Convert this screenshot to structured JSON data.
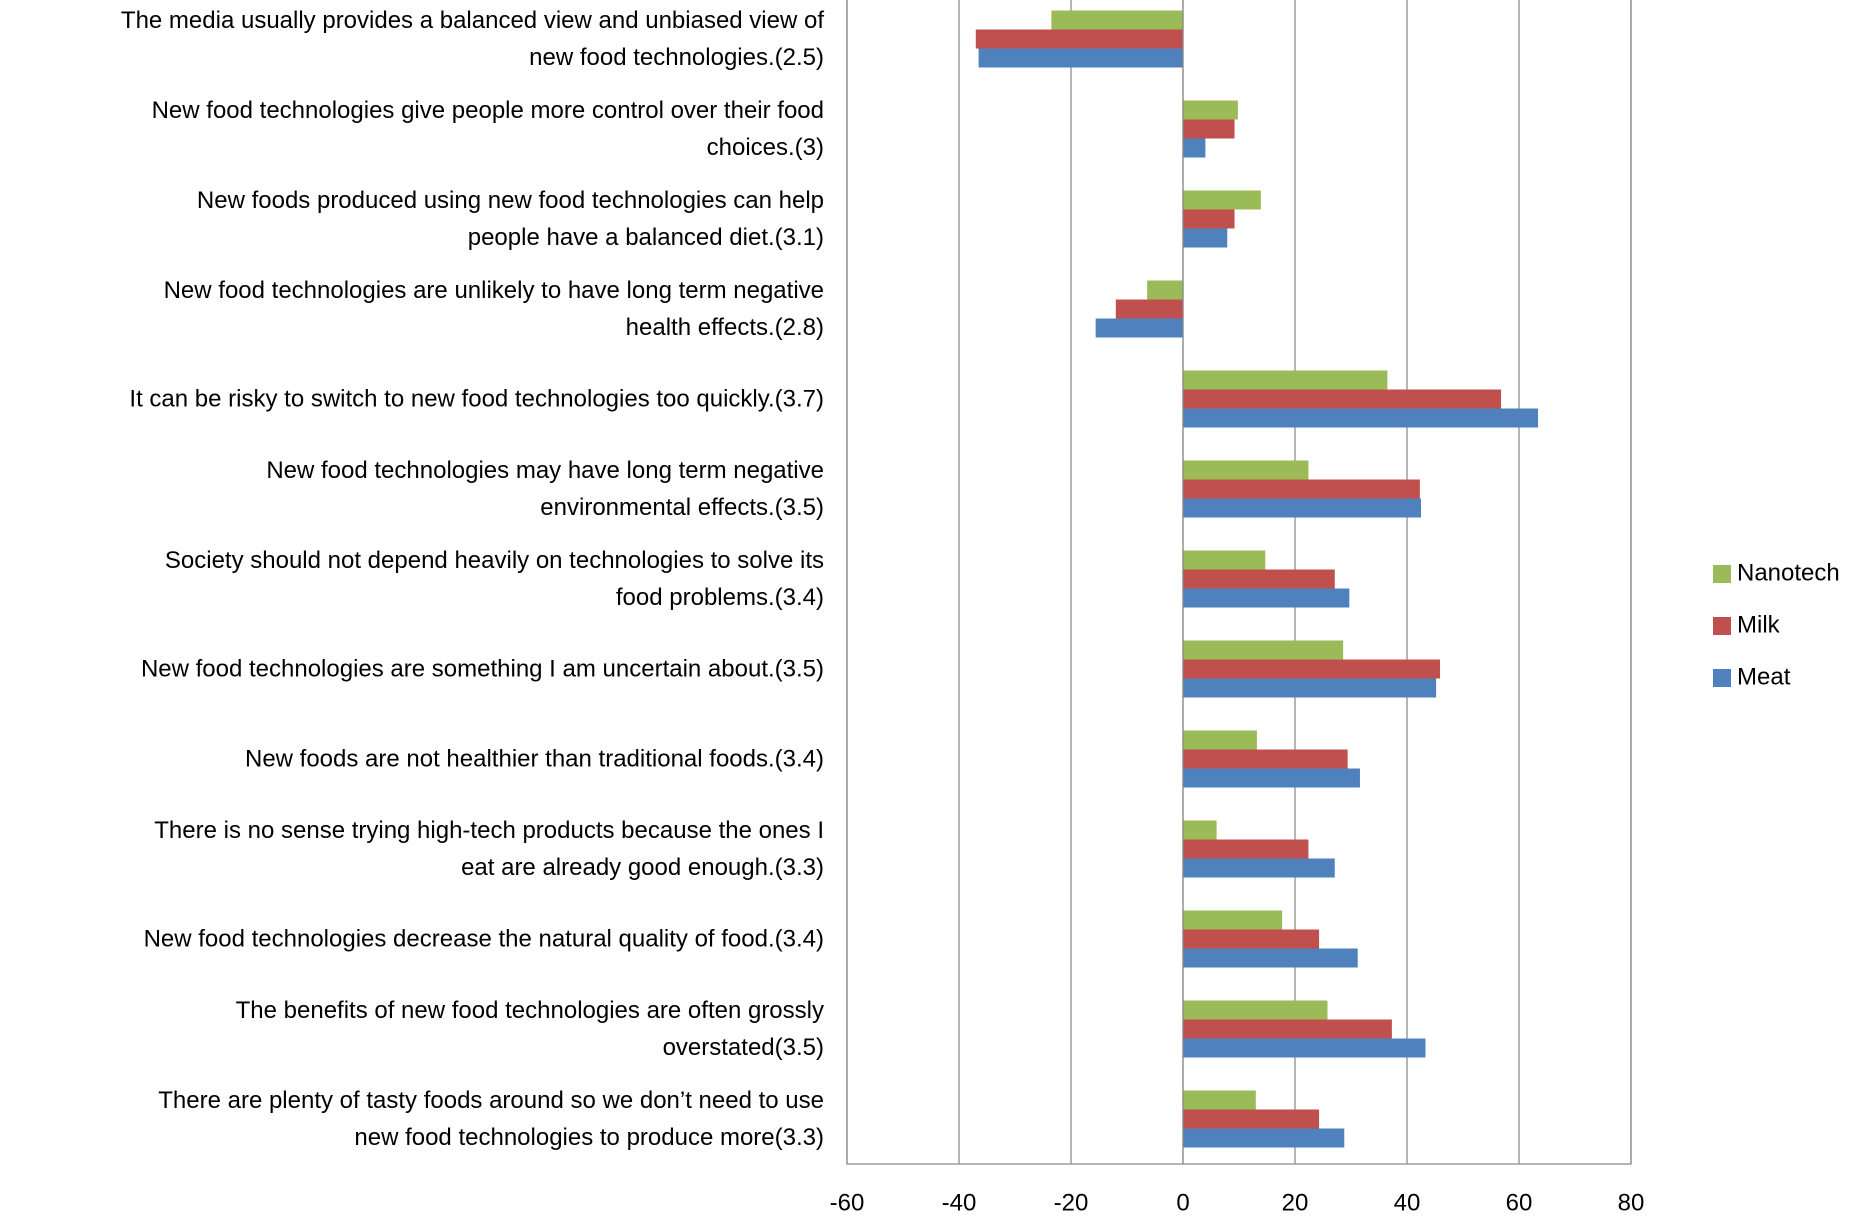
{
  "chart_data": {
    "type": "hbar",
    "categories": [
      "The media usually provides a balanced view and unbiased view of\nnew food technologies.(2.5)",
      "New food technologies give people more control over their food\nchoices.(3)",
      "New foods produced using new food technologies can help\npeople have a balanced diet.(3.1)",
      "New food technologies are unlikely to have long term negative\nhealth effects.(2.8)",
      "It can be risky to switch to new food technologies too quickly.(3.7)",
      "New food technologies may have long term negative\nenvironmental effects.(3.5)",
      "Society should not depend heavily on technologies to solve its\nfood problems.(3.4)",
      "New food technologies are something I am uncertain about.(3.5)",
      "New foods are not healthier than traditional foods.(3.4)",
      "There is no sense trying high-tech products  because the ones I\neat are already good enough.(3.3)",
      "New food technologies decrease the natural quality of food.(3.4)",
      "The benefits of new food technologies are often grossly\noverstated(3.5)",
      "There are plenty of tasty foods around so we don’t need to use\nnew food technologies to produce more(3.3)"
    ],
    "series": [
      {
        "name": "Nanotech",
        "color": "#9bbb59",
        "values": [
          -23.5,
          9.8,
          13.9,
          -6.4,
          36.5,
          22.4,
          14.7,
          28.6,
          13.2,
          6,
          17.7,
          25.8,
          13
        ]
      },
      {
        "name": "Milk",
        "color": "#c0504d",
        "values": [
          -37,
          9.2,
          9.2,
          -12,
          56.8,
          42.3,
          27.1,
          45.9,
          29.4,
          22.4,
          24.3,
          37.3,
          24.3
        ]
      },
      {
        "name": "Meat",
        "color": "#4f81bd",
        "values": [
          -36.5,
          4,
          7.9,
          -15.6,
          63.4,
          42.5,
          29.7,
          45.2,
          31.6,
          27.1,
          31.2,
          43.3,
          28.8
        ]
      }
    ],
    "xlim": [
      -60,
      80
    ],
    "xticks": [
      -60,
      -40,
      -20,
      0,
      20,
      40,
      60,
      80
    ],
    "grid": true
  }
}
